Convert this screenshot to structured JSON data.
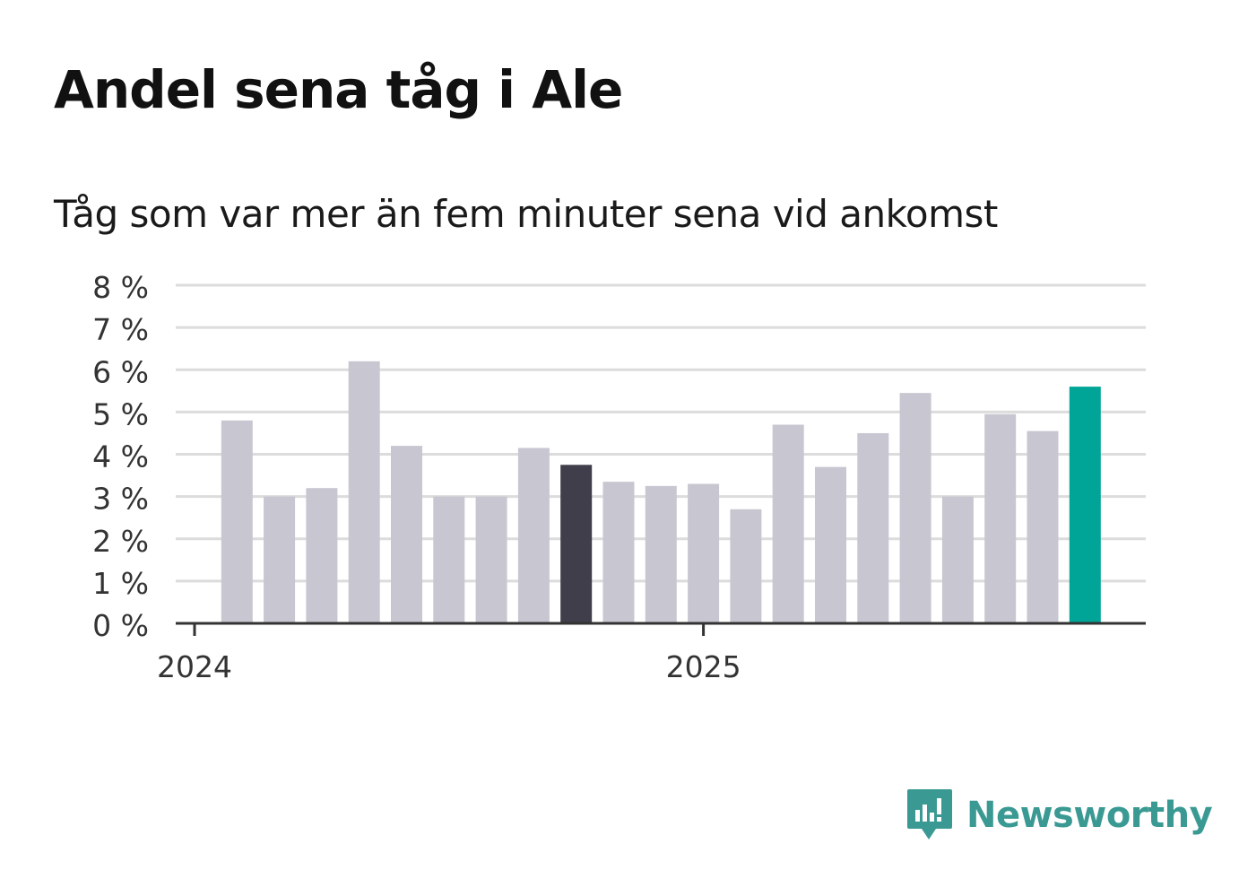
{
  "title": "Andel sena tåg i Ale",
  "subtitle": "Tåg som var mer än fem minuter sena vid ankomst",
  "brand": {
    "name": "Newsworthy",
    "color": "#3a9a93",
    "icon": "newsworthy-logo-icon"
  },
  "chart_data": {
    "type": "bar",
    "title": "Andel sena tåg i Ale",
    "subtitle": "Tåg som var mer än fem minuter sena vid ankomst",
    "xlabel": "",
    "ylabel": "",
    "ylim": [
      0,
      8
    ],
    "yticks": [
      "0 %",
      "1 %",
      "2 %",
      "3 %",
      "4 %",
      "5 %",
      "6 %",
      "7 %",
      "8 %"
    ],
    "xticks": [
      {
        "label": "2024",
        "index": 0
      },
      {
        "label": "2025",
        "index": 12
      }
    ],
    "categories": [
      "2024-01",
      "2024-02",
      "2024-03",
      "2024-04",
      "2024-05",
      "2024-06",
      "2024-07",
      "2024-08",
      "2024-09",
      "2024-10",
      "2024-11",
      "2024-12",
      "2025-01",
      "2025-02",
      "2025-03",
      "2025-04",
      "2025-05",
      "2025-06",
      "2025-07",
      "2025-08",
      "2025-09",
      "2025-10"
    ],
    "values": [
      null,
      4.8,
      3.0,
      3.2,
      6.2,
      4.2,
      3.0,
      3.0,
      4.15,
      3.75,
      3.35,
      3.25,
      3.3,
      2.7,
      4.7,
      3.7,
      4.5,
      5.45,
      3.0,
      4.95,
      4.55,
      5.6
    ],
    "colors": {
      "default": "#c8c7d1",
      "highlight_dark": "#403e4a",
      "highlight_latest": "#00a597",
      "grid": "#dcdcdc",
      "axis": "#333333"
    },
    "highlights": {
      "dark_index": 9,
      "latest_index": 21
    },
    "grid": true
  }
}
